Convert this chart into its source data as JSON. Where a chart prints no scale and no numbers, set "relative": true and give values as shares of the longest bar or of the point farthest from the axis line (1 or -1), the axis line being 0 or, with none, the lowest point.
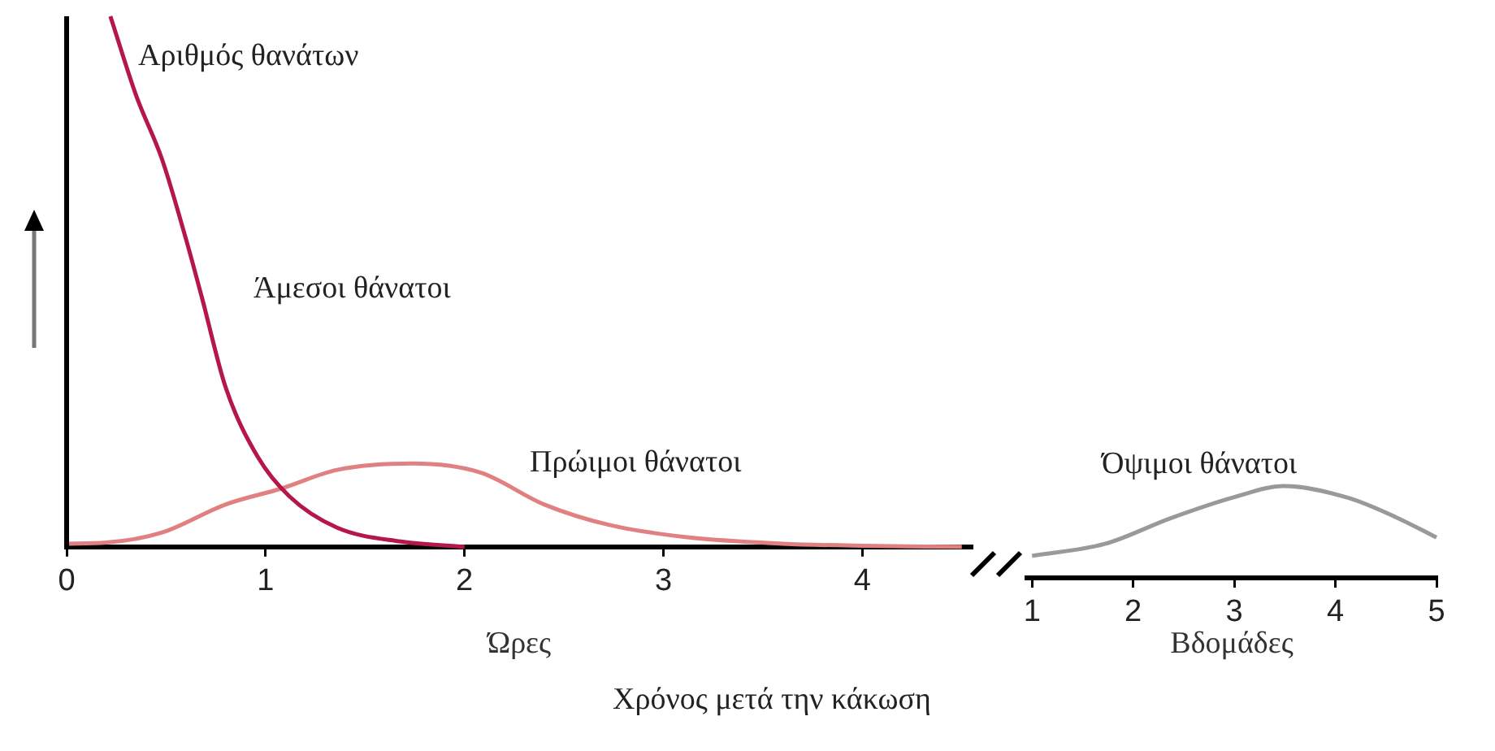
{
  "chart_data": [
    {
      "type": "line",
      "relative": true,
      "ylabel": "Αριθμός θανάτων",
      "xlabel": "Ώρες",
      "xlim": [
        0,
        4.55
      ],
      "xticks": [
        0,
        1,
        2,
        3,
        4
      ],
      "grid": false,
      "legend": false,
      "marker": "none",
      "line_style": "solid",
      "annotations": [
        "Χρόνος μετά την κάκωση"
      ],
      "series": [
        {
          "name": "Άμεσοι θάνατοι",
          "color": "#b5174a",
          "x": [
            0.22,
            0.35,
            0.48,
            0.6,
            0.68,
            0.8,
            0.96,
            1.12,
            1.36,
            1.68,
            2.0
          ],
          "values": [
            1,
            0.85,
            0.73,
            0.58,
            0.47,
            0.3,
            0.17,
            0.095,
            0.036,
            0.01,
            0
          ]
        },
        {
          "name": "Πρώιμοι θάνατοι",
          "color": "#e08080",
          "x": [
            0,
            0.2,
            0.48,
            0.8,
            1.08,
            1.36,
            1.74,
            2.08,
            2.4,
            2.72,
            3.12,
            3.6,
            4.0,
            4.5
          ],
          "values": [
            0.006,
            0.008,
            0.027,
            0.08,
            0.11,
            0.145,
            0.157,
            0.14,
            0.08,
            0.042,
            0.018,
            0.006,
            0.002,
            0
          ]
        }
      ]
    },
    {
      "type": "line",
      "relative": true,
      "xlabel": "Βδομάδες",
      "xlim": [
        0.95,
        5
      ],
      "xticks": [
        1,
        2,
        3,
        4,
        5
      ],
      "grid": false,
      "legend": false,
      "marker": "none",
      "line_style": "solid",
      "series": [
        {
          "name": "Όψιμοι θάνατοι",
          "color": "#999999",
          "x": [
            1,
            1.72,
            2.37,
            3.0,
            3.49,
            4.13,
            4.6,
            5
          ],
          "values": [
            0.24,
            0.37,
            0.65,
            0.88,
            1,
            0.87,
            0.66,
            0.44
          ]
        }
      ]
    }
  ]
}
